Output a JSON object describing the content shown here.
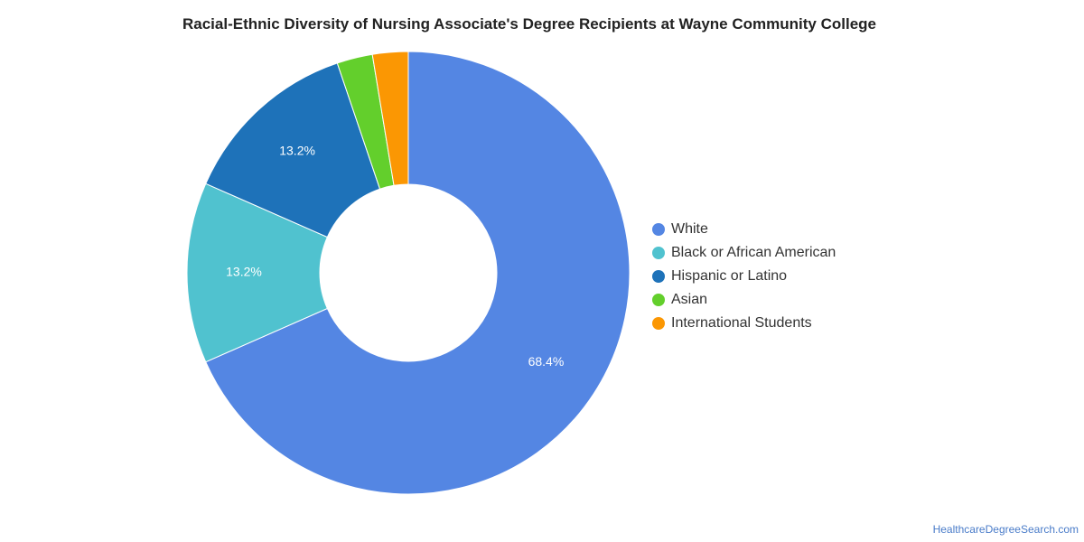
{
  "chart_data": {
    "type": "pie",
    "title": "Racial-Ethnic Diversity of Nursing Associate's Degree Recipients at Wayne Community College",
    "donut": true,
    "legend_position": "right",
    "slices": [
      {
        "label": "White",
        "value": 68.4,
        "display": "68.4%",
        "color": "#5486e3"
      },
      {
        "label": "Black or African American",
        "value": 13.2,
        "display": "13.2%",
        "color": "#50c2cf"
      },
      {
        "label": "Hispanic or Latino",
        "value": 13.2,
        "display": "13.2%",
        "color": "#1e72b9"
      },
      {
        "label": "Asian",
        "value": 2.6,
        "display": "",
        "color": "#63cf2c"
      },
      {
        "label": "International Students",
        "value": 2.6,
        "display": "",
        "color": "#fb9703"
      }
    ]
  },
  "source": "HealthcareDegreeSearch.com"
}
